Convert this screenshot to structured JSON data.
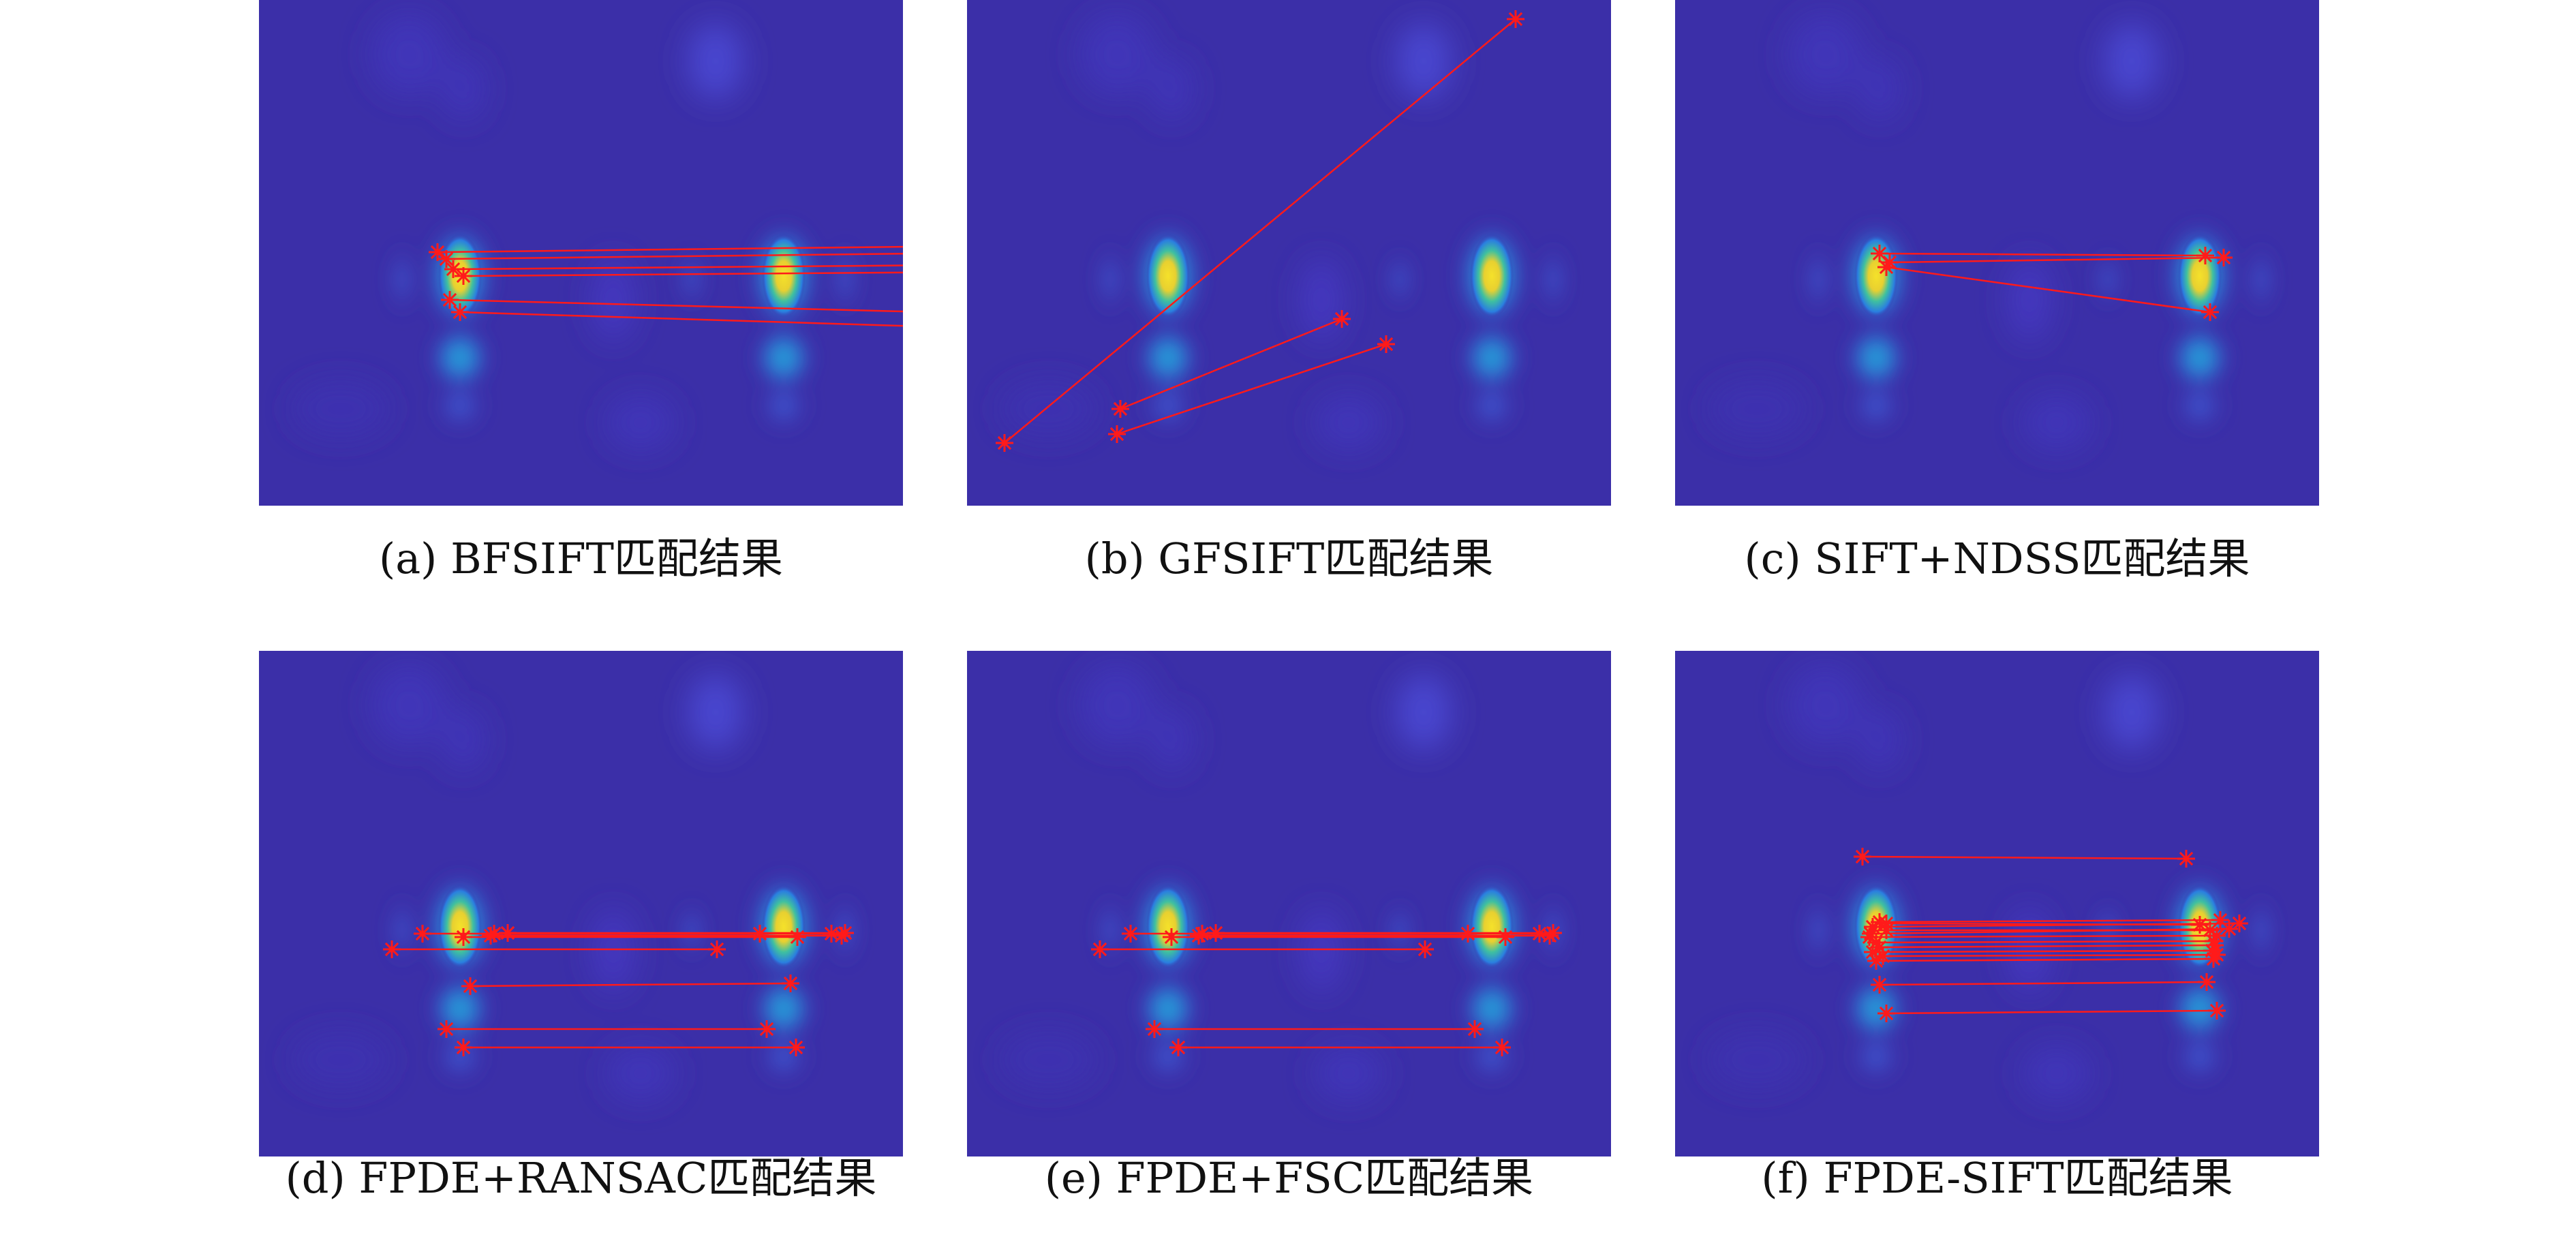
{
  "figure": {
    "panels": [
      {
        "id": "a",
        "caption": "(a) BFSIFT匹配结果"
      },
      {
        "id": "b",
        "caption": "(b) GFSIFT匹配结果"
      },
      {
        "id": "c",
        "caption": "(c) SIFT+NDSS匹配结果"
      },
      {
        "id": "d",
        "caption": "(d) FPDE+RANSAC匹配结果"
      },
      {
        "id": "e",
        "caption": "(e) FPDE+FSC匹配结果"
      },
      {
        "id": "f",
        "caption": "(f) FPDE-SIFT匹配结果"
      }
    ],
    "colors": {
      "background": "#3b2fa8",
      "match_line": "#ff1a1a",
      "marker": "#ff1a1a"
    }
  }
}
